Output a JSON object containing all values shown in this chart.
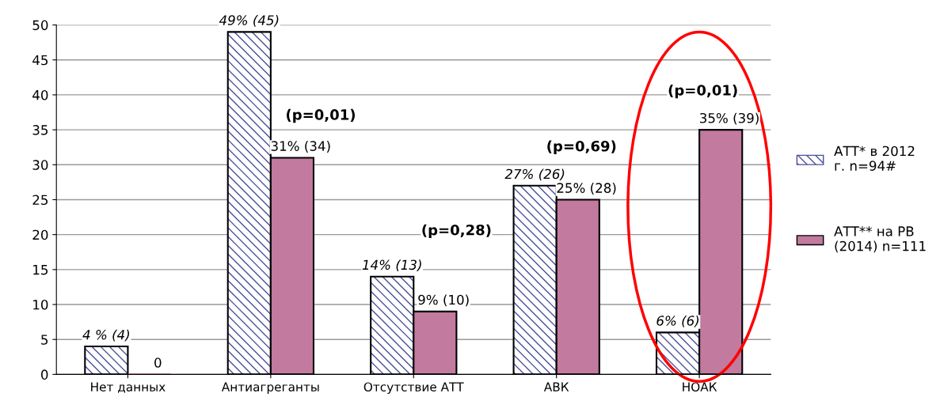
{
  "chart_data": {
    "type": "bar",
    "categories": [
      "Нет данных",
      "Антиагреганты",
      "Отсутствие АТТ",
      "АВК",
      "НОАК"
    ],
    "series": [
      {
        "name": "АТТ* в 2012\nг. n=94#",
        "color": "#4a4f9a",
        "values": [
          4,
          49,
          14,
          27,
          6
        ],
        "value_labels": [
          "4 % (4)",
          "49% (45)",
          "14% (13)",
          "27% (26)",
          "6% (6)"
        ]
      },
      {
        "name": "АТТ** на РВ\n(2014) n=111",
        "color": "#c27a9e",
        "values": [
          0,
          31,
          9,
          25,
          35
        ],
        "value_labels": [
          "0",
          "31% (34)",
          "9% (10)",
          "25% (28)",
          "35% (39)"
        ]
      }
    ],
    "ylim": [
      0,
      50
    ],
    "yticks": [
      0,
      5,
      10,
      15,
      20,
      25,
      30,
      35,
      40,
      45,
      50
    ],
    "grid": "y",
    "legend": "right",
    "annotations": [
      "(p=0,01)",
      "(p=0,28)",
      "(p=0,69)",
      "(p=0,01)"
    ]
  }
}
